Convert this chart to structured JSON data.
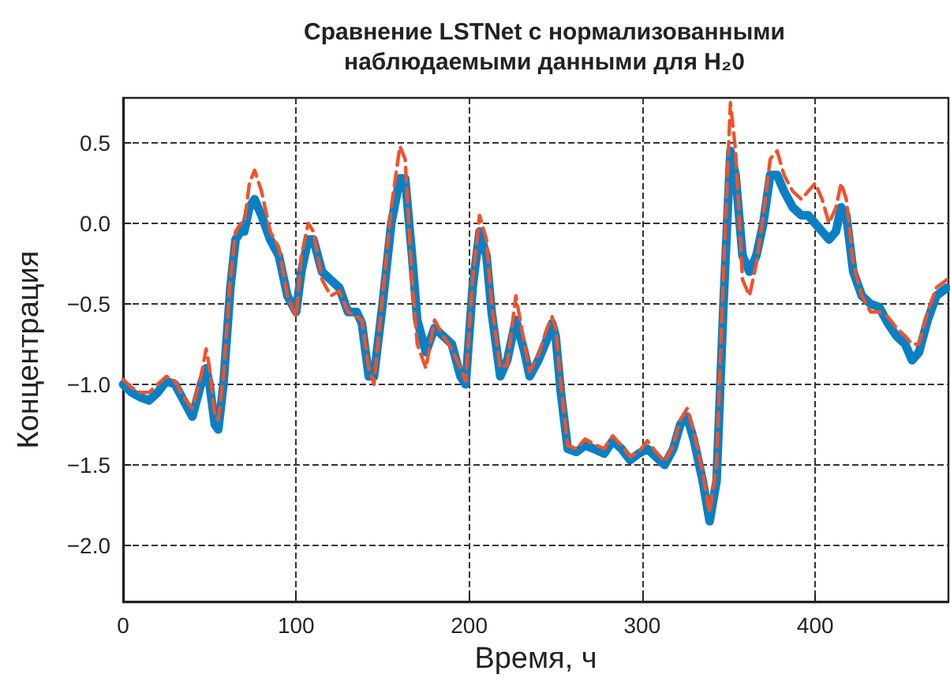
{
  "chart_data": {
    "type": "line",
    "title": "Сравнение LSTNet с нормализованными\nнаблюдаемыми данными для H₂0",
    "xlabel": "Время, ч",
    "ylabel": "Концентрация",
    "x": [
      0,
      5,
      10,
      15,
      20,
      25,
      30,
      35,
      40,
      45,
      48,
      50,
      53,
      55,
      58,
      62,
      65,
      68,
      70,
      73,
      76,
      80,
      85,
      90,
      95,
      100,
      103,
      107,
      110,
      115,
      120,
      125,
      130,
      135,
      138,
      142,
      145,
      150,
      155,
      160,
      163,
      167,
      170,
      175,
      180,
      185,
      190,
      195,
      198,
      202,
      206,
      210,
      213,
      218,
      222,
      227,
      232,
      235,
      240,
      245,
      248,
      250,
      253,
      257,
      262,
      267,
      272,
      278,
      283,
      288,
      293,
      298,
      303,
      308,
      313,
      318,
      322,
      326,
      330,
      335,
      339,
      343,
      347,
      351,
      354,
      358,
      362,
      366,
      370,
      374,
      378,
      382,
      387,
      392,
      396,
      400,
      404,
      408,
      412,
      415,
      418,
      422,
      427,
      432,
      437,
      442,
      447,
      452,
      456,
      460,
      465,
      470,
      476
    ],
    "series": [
      {
        "color": "#0a80c4",
        "line_style": "solid",
        "values": [
          -1.0,
          -1.05,
          -1.08,
          -1.1,
          -1.05,
          -0.98,
          -1.0,
          -1.1,
          -1.2,
          -1.0,
          -0.9,
          -1.0,
          -1.25,
          -1.28,
          -1.0,
          -0.4,
          -0.1,
          -0.05,
          -0.05,
          0.1,
          0.15,
          0.05,
          -0.1,
          -0.2,
          -0.45,
          -0.55,
          -0.3,
          -0.1,
          -0.1,
          -0.3,
          -0.35,
          -0.4,
          -0.55,
          -0.55,
          -0.62,
          -0.95,
          -0.95,
          -0.5,
          0.0,
          0.28,
          0.28,
          -0.2,
          -0.6,
          -0.8,
          -0.65,
          -0.7,
          -0.75,
          -0.95,
          -1.0,
          -0.4,
          -0.05,
          -0.2,
          -0.55,
          -0.95,
          -0.85,
          -0.6,
          -0.8,
          -0.95,
          -0.85,
          -0.72,
          -0.62,
          -0.7,
          -1.05,
          -1.4,
          -1.42,
          -1.38,
          -1.4,
          -1.43,
          -1.35,
          -1.4,
          -1.47,
          -1.43,
          -1.4,
          -1.45,
          -1.5,
          -1.4,
          -1.25,
          -1.2,
          -1.35,
          -1.6,
          -1.85,
          -1.6,
          -0.5,
          0.45,
          0.3,
          -0.2,
          -0.3,
          -0.2,
          0.0,
          0.3,
          0.3,
          0.2,
          0.1,
          0.05,
          0.05,
          0.0,
          -0.05,
          -0.1,
          -0.05,
          0.1,
          0.05,
          -0.3,
          -0.45,
          -0.5,
          -0.52,
          -0.62,
          -0.7,
          -0.75,
          -0.85,
          -0.8,
          -0.6,
          -0.45,
          -0.4
        ]
      },
      {
        "color": "#f0522a",
        "line_style": "dashed",
        "values": [
          -0.97,
          -1.02,
          -1.05,
          -1.05,
          -1.0,
          -0.95,
          -0.98,
          -1.08,
          -1.15,
          -0.95,
          -0.78,
          -0.9,
          -1.2,
          -1.22,
          -0.95,
          -0.35,
          -0.05,
          0.0,
          0.0,
          0.25,
          0.33,
          0.2,
          -0.05,
          -0.15,
          -0.45,
          -0.58,
          -0.2,
          0.0,
          -0.05,
          -0.35,
          -0.45,
          -0.42,
          -0.55,
          -0.58,
          -0.6,
          -0.9,
          -1.0,
          -0.45,
          0.1,
          0.48,
          0.4,
          -0.35,
          -0.75,
          -0.9,
          -0.6,
          -0.7,
          -0.78,
          -0.9,
          -0.98,
          -0.35,
          0.05,
          -0.1,
          -0.5,
          -0.9,
          -0.88,
          -0.45,
          -0.75,
          -0.92,
          -0.82,
          -0.65,
          -0.58,
          -0.65,
          -1.0,
          -1.38,
          -1.4,
          -1.34,
          -1.37,
          -1.4,
          -1.32,
          -1.38,
          -1.45,
          -1.42,
          -1.35,
          -1.42,
          -1.48,
          -1.38,
          -1.22,
          -1.15,
          -1.3,
          -1.55,
          -1.8,
          -1.5,
          -0.3,
          0.75,
          0.45,
          -0.35,
          -0.45,
          -0.25,
          0.05,
          0.4,
          0.45,
          0.3,
          0.2,
          0.15,
          0.2,
          0.25,
          0.15,
          0.0,
          0.1,
          0.25,
          0.15,
          -0.25,
          -0.45,
          -0.55,
          -0.55,
          -0.58,
          -0.65,
          -0.7,
          -0.75,
          -0.75,
          -0.55,
          -0.4,
          -0.35
        ]
      }
    ],
    "xlim": [
      0,
      477
    ],
    "ylim": [
      -2.35,
      0.78
    ],
    "xticks": [
      0,
      100,
      200,
      300,
      400
    ],
    "yticks": [
      {
        "value": -2,
        "label": "−2.0"
      },
      {
        "value": -1.5,
        "label": "−1.5"
      },
      {
        "value": -1,
        "label": "−1.0"
      },
      {
        "value": -0.5,
        "label": "−0.5"
      },
      {
        "value": 0,
        "label": "0.0"
      },
      {
        "value": 0.5,
        "label": "0.5"
      }
    ],
    "grid": true,
    "marker": "none"
  }
}
